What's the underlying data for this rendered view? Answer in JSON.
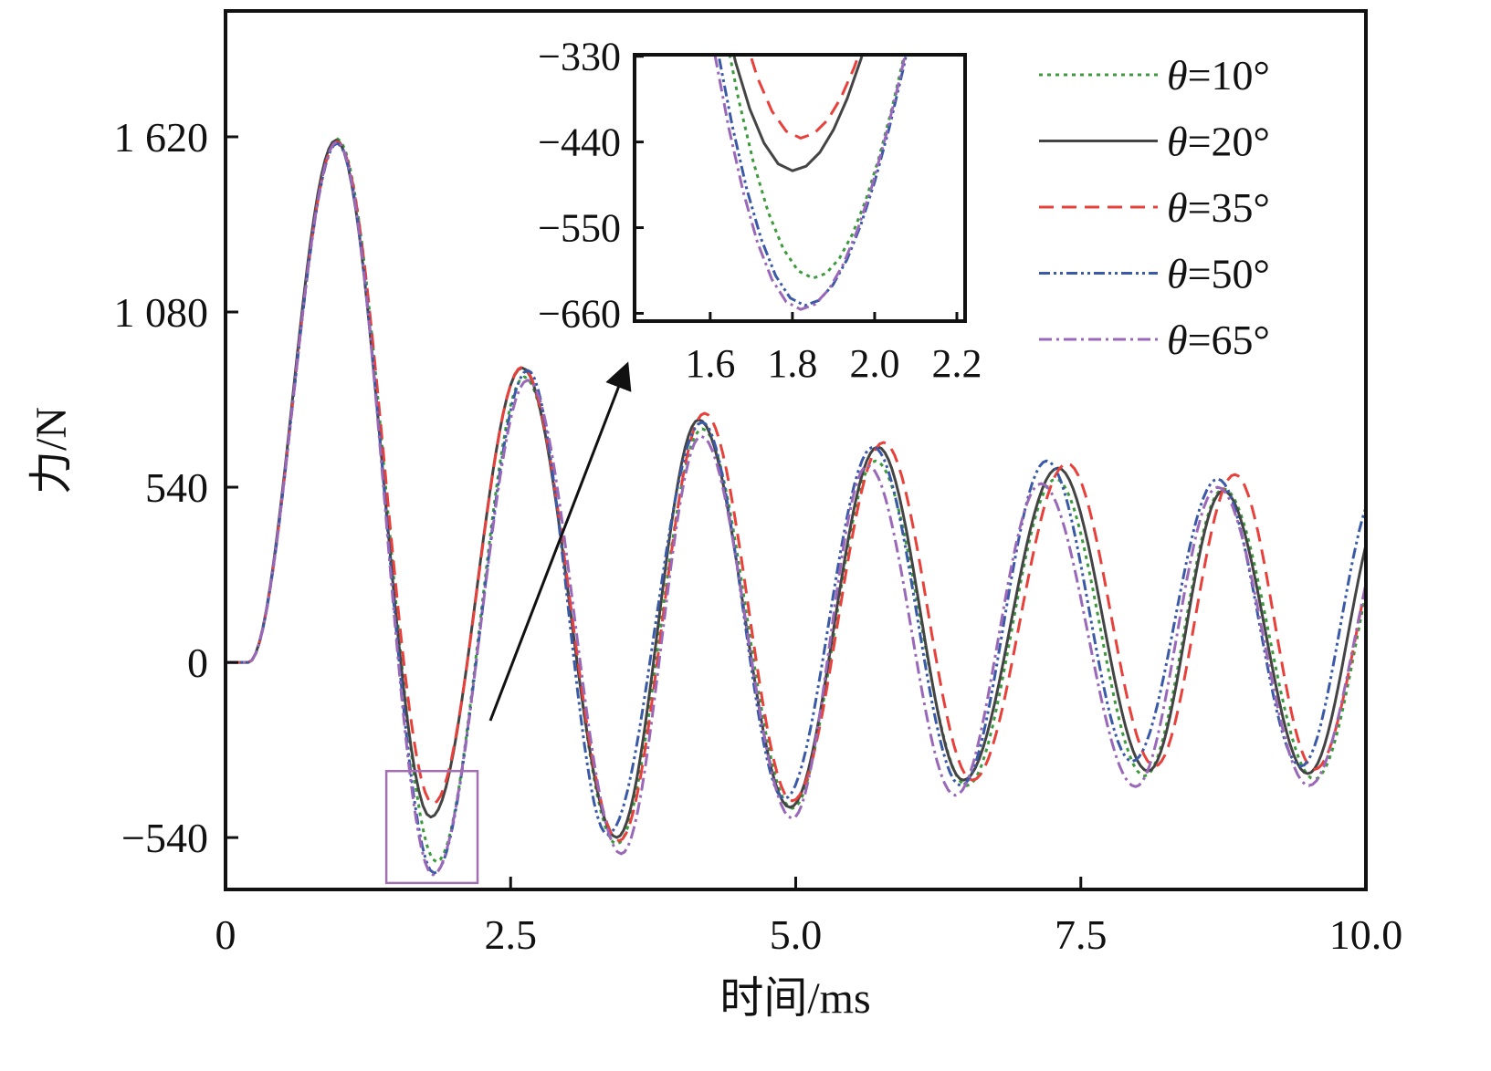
{
  "chart_data": {
    "type": "line",
    "title": "",
    "xlabel": "时间/ms",
    "ylabel": "力/N",
    "xlim": [
      0,
      10
    ],
    "ylim": [
      -700,
      2008
    ],
    "xticks": [
      0,
      2.5,
      5,
      7.5,
      10
    ],
    "xtick_labels": [
      "0",
      "2.5",
      "5.0",
      "7.5",
      "10.0"
    ],
    "yticks": [
      1620,
      1080,
      540,
      0,
      -540
    ],
    "ytick_labels": [
      "1 620",
      "1 080",
      "540",
      "0",
      "−540"
    ],
    "legend_position": "top-right",
    "series": [
      {
        "name": "θ=10°",
        "label_var": "θ",
        "label_rest": "=10°",
        "color": "#3c9a3c",
        "dash": "4 5",
        "points": [
          [
            0,
            0
          ],
          [
            0.2,
            0
          ],
          [
            0.98,
            1614
          ],
          [
            1.85,
            -615
          ],
          [
            2.62,
            880
          ],
          [
            3.43,
            -560
          ],
          [
            4.18,
            720
          ],
          [
            4.97,
            -450
          ],
          [
            5.7,
            621
          ],
          [
            6.5,
            -380
          ],
          [
            7.28,
            565
          ],
          [
            8.06,
            -350
          ],
          [
            8.75,
            535
          ],
          [
            9.55,
            -360
          ],
          [
            10.3,
            520
          ]
        ]
      },
      {
        "name": "θ=20°",
        "label_var": "θ",
        "label_rest": "=20°",
        "color": "#444444",
        "dash": "",
        "points": [
          [
            0,
            0
          ],
          [
            0.2,
            0
          ],
          [
            0.97,
            1610
          ],
          [
            1.8,
            -477
          ],
          [
            2.6,
            908
          ],
          [
            3.43,
            -540
          ],
          [
            4.15,
            748
          ],
          [
            4.95,
            -447
          ],
          [
            5.72,
            664
          ],
          [
            6.47,
            -363
          ],
          [
            7.3,
            599
          ],
          [
            8.09,
            -335
          ],
          [
            8.75,
            529
          ],
          [
            9.49,
            -343
          ],
          [
            10.2,
            520
          ]
        ]
      },
      {
        "name": "θ=35°",
        "label_var": "θ",
        "label_rest": "=35°",
        "color": "#e8403a",
        "dash": "16 9",
        "points": [
          [
            0,
            0
          ],
          [
            0.2,
            0
          ],
          [
            0.98,
            1605
          ],
          [
            1.82,
            -435
          ],
          [
            2.6,
            910
          ],
          [
            3.45,
            -550
          ],
          [
            4.2,
            768
          ],
          [
            4.97,
            -427
          ],
          [
            5.77,
            678
          ],
          [
            6.55,
            -363
          ],
          [
            7.38,
            613
          ],
          [
            8.15,
            -320
          ],
          [
            8.85,
            579
          ],
          [
            9.55,
            -330
          ],
          [
            10.3,
            540
          ]
        ]
      },
      {
        "name": "θ=50°",
        "label_var": "θ",
        "label_rest": "=50°",
        "color": "#3a5aa8",
        "dash": "12 4 3 4 3 4",
        "points": [
          [
            0,
            0
          ],
          [
            0.2,
            0
          ],
          [
            0.98,
            1600
          ],
          [
            1.83,
            -650
          ],
          [
            2.65,
            900
          ],
          [
            3.35,
            -530
          ],
          [
            4.18,
            740
          ],
          [
            4.9,
            -420
          ],
          [
            5.68,
            664
          ],
          [
            6.45,
            -380
          ],
          [
            7.2,
            621
          ],
          [
            7.95,
            -305
          ],
          [
            8.7,
            565
          ],
          [
            9.43,
            -320
          ],
          [
            10.12,
            540
          ]
        ]
      },
      {
        "name": "θ=65°",
        "label_var": "θ",
        "label_rest": "=65°",
        "color": "#9a68b8",
        "dash": "14 5 3 5",
        "points": [
          [
            0,
            0
          ],
          [
            0.2,
            0
          ],
          [
            0.98,
            1605
          ],
          [
            1.82,
            -655
          ],
          [
            2.65,
            870
          ],
          [
            3.47,
            -590
          ],
          [
            4.17,
            697
          ],
          [
            4.97,
            -481
          ],
          [
            5.63,
            607
          ],
          [
            6.4,
            -410
          ],
          [
            7.15,
            551
          ],
          [
            7.98,
            -383
          ],
          [
            8.7,
            540
          ],
          [
            9.5,
            -380
          ],
          [
            10.3,
            520
          ]
        ]
      }
    ],
    "inset": {
      "xlim": [
        1.416,
        2.22
      ],
      "ylim": [
        -670,
        -328
      ],
      "xticks": [
        1.6,
        1.8,
        2.0,
        2.2
      ],
      "xtick_labels": [
        "1.6",
        "1.8",
        "2.0",
        "2.2"
      ],
      "yticks": [
        -330,
        -440,
        -550,
        -660
      ],
      "ytick_labels": [
        "−330",
        "−440",
        "−550",
        "−660"
      ],
      "zoom_region": {
        "x": [
          1.41,
          2.21
        ],
        "y": [
          -680,
          -335
        ]
      },
      "highlight_color": "#a070b0"
    }
  }
}
